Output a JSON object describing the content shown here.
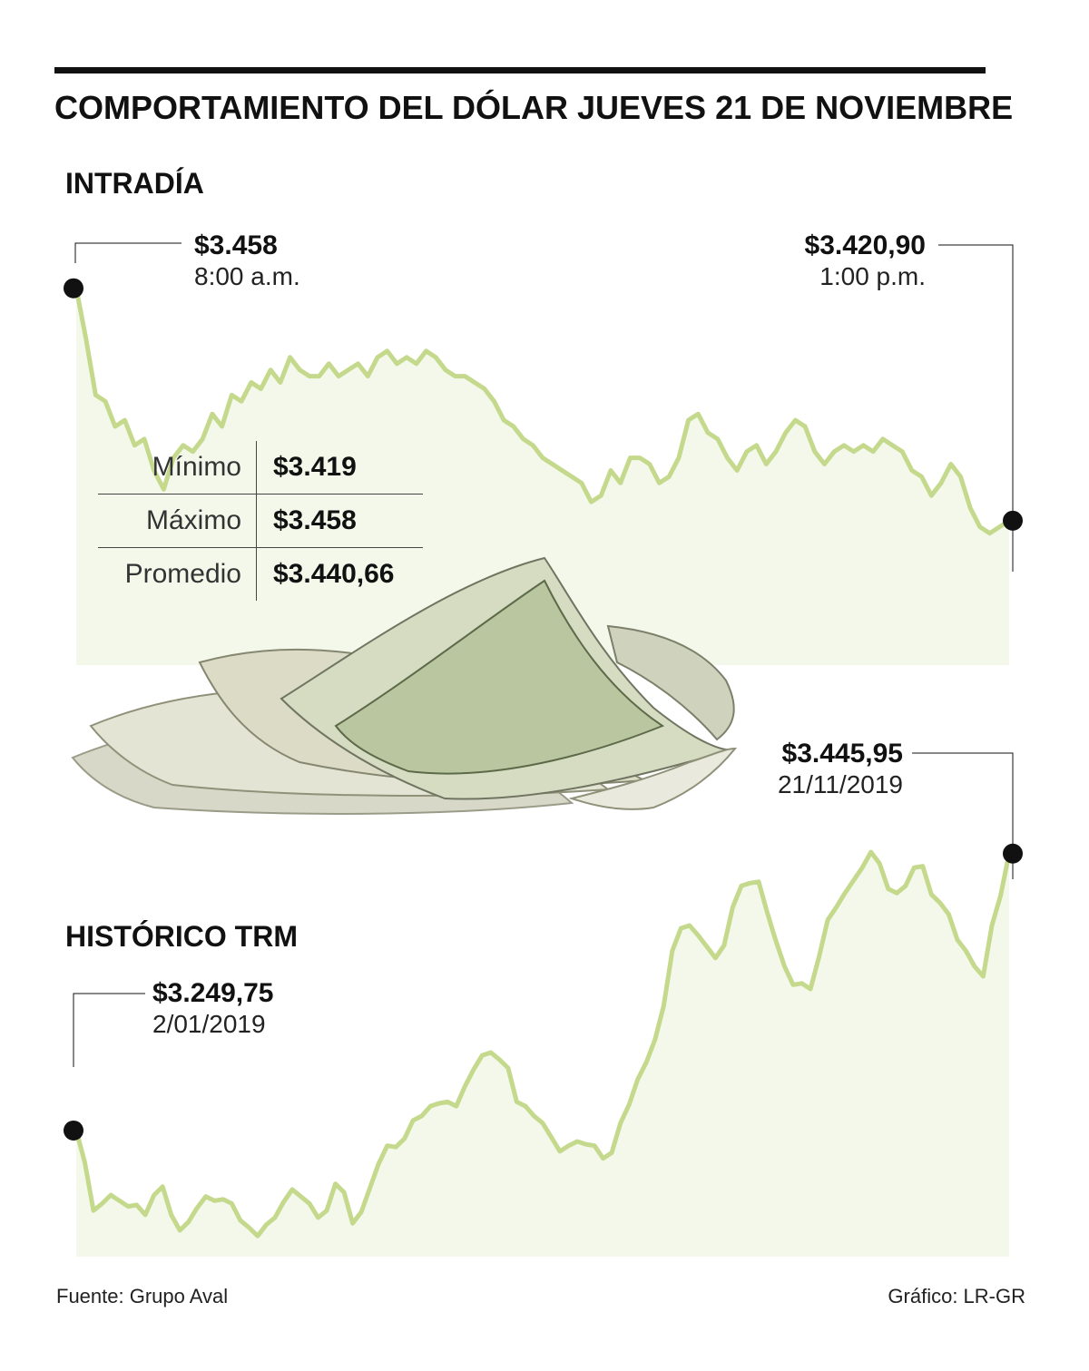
{
  "title": "COMPORTAMIENTO DEL DÓLAR JUEVES 21 DE NOVIEMBRE",
  "colors": {
    "line": "#c5d98d",
    "area": "#f3f8ea",
    "marker": "#111111",
    "text": "#111111"
  },
  "intraday": {
    "label": "INTRADÍA",
    "start": {
      "value": "$3.458",
      "time": "8:00 a.m."
    },
    "end": {
      "value": "$3.420,90",
      "time": "1:00 p.m."
    },
    "stats": [
      {
        "label": "Mínimo",
        "value": "$3.419"
      },
      {
        "label": "Máximo",
        "value": "$3.458"
      },
      {
        "label": "Promedio",
        "value": "$3.440,66"
      }
    ]
  },
  "historico": {
    "label": "HISTÓRICO TRM",
    "start": {
      "value": "$3.249,75",
      "date": "2/01/2019"
    },
    "end": {
      "value": "$3.445,95",
      "date": "21/11/2019"
    }
  },
  "illustration": "dollar-bills-image",
  "footer": {
    "source": "Fuente: Grupo Aval",
    "credit": "Gráfico: LR-GR"
  },
  "chart_data": [
    {
      "type": "area",
      "name": "intraday",
      "x_range": [
        "8:00 a.m.",
        "1:00 p.m."
      ],
      "ylim": [
        3410,
        3462
      ],
      "y": [
        3458,
        3450,
        3441,
        3440,
        3436,
        3437,
        3433,
        3434,
        3429,
        3426,
        3431,
        3433,
        3432,
        3434,
        3438,
        3436,
        3441,
        3440,
        3443,
        3442,
        3445,
        3443,
        3447,
        3445,
        3444,
        3444,
        3446,
        3444,
        3445,
        3446,
        3444,
        3447,
        3448,
        3446,
        3447,
        3446,
        3448,
        3447,
        3445,
        3444,
        3444,
        3443,
        3442,
        3440,
        3437,
        3436,
        3434,
        3433,
        3431,
        3430,
        3429,
        3428,
        3427,
        3424,
        3425,
        3429,
        3427,
        3431,
        3431,
        3430,
        3427,
        3428,
        3431,
        3437,
        3438,
        3435,
        3434,
        3431,
        3429,
        3432,
        3433,
        3430,
        3432,
        3435,
        3437,
        3436,
        3432,
        3430,
        3432,
        3433,
        3432,
        3433,
        3432,
        3434,
        3433,
        3432,
        3429,
        3428,
        3425,
        3427,
        3430,
        3428,
        3423,
        3420,
        3419,
        3420,
        3421
      ]
    },
    {
      "type": "area",
      "name": "historico-trm",
      "x_range": [
        "2/01/2019",
        "21/11/2019"
      ],
      "ylim": [
        3170,
        3485
      ],
      "y": [
        3249.75,
        3227,
        3193,
        3198,
        3204,
        3200,
        3196,
        3197,
        3190,
        3204,
        3210,
        3190,
        3179,
        3185,
        3195,
        3203,
        3200,
        3201,
        3198,
        3186,
        3181,
        3175,
        3183,
        3188,
        3199,
        3208,
        3203,
        3198,
        3188,
        3193,
        3212,
        3206,
        3184,
        3192,
        3209,
        3226,
        3239,
        3238,
        3244,
        3257,
        3260,
        3267,
        3269,
        3270,
        3267,
        3281,
        3293,
        3303,
        3305,
        3300,
        3294,
        3270,
        3267,
        3260,
        3255,
        3245,
        3235,
        3239,
        3242,
        3240,
        3239,
        3230,
        3234,
        3255,
        3268,
        3286,
        3298,
        3314,
        3338,
        3377,
        3393,
        3395,
        3388,
        3380,
        3372,
        3381,
        3408,
        3423,
        3425,
        3426,
        3404,
        3384,
        3366,
        3353,
        3354,
        3350,
        3373,
        3399,
        3408,
        3418,
        3427,
        3436,
        3447,
        3439,
        3421,
        3418,
        3423,
        3436,
        3437,
        3417,
        3411,
        3403,
        3385,
        3377,
        3366,
        3359,
        3395,
        3416,
        3445.95
      ]
    }
  ]
}
